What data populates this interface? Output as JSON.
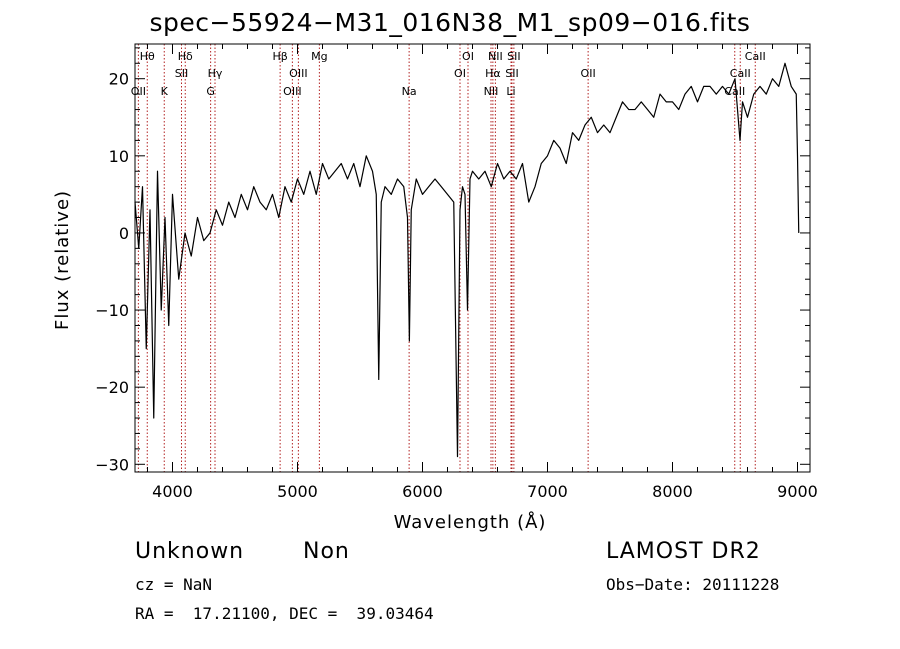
{
  "page": {
    "title": "spec−55924−M31_016N38_M1_sp09−016.fits",
    "object_class": "Unknown",
    "object_subclass": "Non",
    "survey": "LAMOST DR2",
    "cz_line": "cz = NaN",
    "obs_date_line": "Obs−Date: 20111228",
    "radec_line": "RA =  17.21100, DEC =  39.03464"
  },
  "chart_data": {
    "type": "line",
    "xlabel": "Wavelength (Å)",
    "ylabel": "Flux (relative)",
    "xlim": [
      3700,
      9100
    ],
    "ylim": [
      -31,
      24.5
    ],
    "xticks": [
      4000,
      5000,
      6000,
      7000,
      8000,
      9000
    ],
    "yticks": [
      -30,
      -20,
      -10,
      0,
      10,
      20
    ],
    "grid": false,
    "colors": {
      "spectrum": "#000000",
      "line_markers": "#b22222"
    },
    "lines": [
      {
        "label": "Hθ",
        "wavelength": 3798,
        "row": 0
      },
      {
        "label": "OII",
        "wavelength": 3727,
        "row": 2
      },
      {
        "label": "K",
        "wavelength": 3934,
        "row": 2
      },
      {
        "label": "Hδ",
        "wavelength": 4102,
        "row": 0
      },
      {
        "label": "SII",
        "wavelength": 4072,
        "row": 1
      },
      {
        "label": "Hγ",
        "wavelength": 4340,
        "row": 1
      },
      {
        "label": "G",
        "wavelength": 4305,
        "row": 2
      },
      {
        "label": "Hβ",
        "wavelength": 4861,
        "row": 0
      },
      {
        "label": "OIII",
        "wavelength": 5007,
        "row": 1
      },
      {
        "label": "OIII",
        "wavelength": 4959,
        "row": 2
      },
      {
        "label": "Mg",
        "wavelength": 5175,
        "row": 0
      },
      {
        "label": "Na",
        "wavelength": 5893,
        "row": 2
      },
      {
        "label": "OI",
        "wavelength": 6364,
        "row": 0
      },
      {
        "label": "OI",
        "wavelength": 6300,
        "row": 1
      },
      {
        "label": "NII",
        "wavelength": 6583,
        "row": 0
      },
      {
        "label": "Hα",
        "wavelength": 6563,
        "row": 1
      },
      {
        "label": "NII",
        "wavelength": 6548,
        "row": 2
      },
      {
        "label": "SII",
        "wavelength": 6731,
        "row": 0
      },
      {
        "label": "SII",
        "wavelength": 6716,
        "row": 1
      },
      {
        "label": "Li",
        "wavelength": 6708,
        "row": 2
      },
      {
        "label": "OII",
        "wavelength": 7325,
        "row": 1
      },
      {
        "label": "CaII",
        "wavelength": 8662,
        "row": 0
      },
      {
        "label": "CaII",
        "wavelength": 8542,
        "row": 1
      },
      {
        "label": "CaII",
        "wavelength": 8498,
        "row": 2
      }
    ],
    "series": [
      {
        "wavelength": [
          3700,
          3730,
          3760,
          3790,
          3820,
          3850,
          3880,
          3910,
          3940,
          3970,
          4000,
          4050,
          4100,
          4150,
          4200,
          4250,
          4300,
          4350,
          4400,
          4450,
          4500,
          4550,
          4600,
          4650,
          4700,
          4750,
          4800,
          4850,
          4900,
          4950,
          5000,
          5050,
          5100,
          5150,
          5200,
          5250,
          5300,
          5350,
          5400,
          5450,
          5500,
          5550,
          5600,
          5630,
          5650,
          5670,
          5700,
          5750,
          5800,
          5850,
          5880,
          5895,
          5910,
          5950,
          6000,
          6050,
          6100,
          6150,
          6200,
          6250,
          6280,
          6300,
          6320,
          6340,
          6360,
          6380,
          6400,
          6450,
          6500,
          6550,
          6600,
          6650,
          6700,
          6750,
          6800,
          6850,
          6900,
          6950,
          7000,
          7050,
          7100,
          7150,
          7200,
          7250,
          7300,
          7350,
          7400,
          7450,
          7500,
          7550,
          7600,
          7650,
          7700,
          7750,
          7800,
          7850,
          7900,
          7950,
          8000,
          8050,
          8100,
          8150,
          8200,
          8250,
          8300,
          8350,
          8400,
          8450,
          8500,
          8520,
          8540,
          8560,
          8600,
          8650,
          8700,
          8750,
          8800,
          8850,
          8900,
          8950,
          8990,
          9000,
          9010
        ],
        "flux": [
          4,
          -2,
          6,
          -15,
          3,
          -24,
          8,
          -10,
          2,
          -12,
          5,
          -6,
          0,
          -3,
          2,
          -1,
          0,
          3,
          1,
          4,
          2,
          5,
          3,
          6,
          4,
          3,
          5,
          2,
          6,
          4,
          7,
          5,
          8,
          5,
          9,
          7,
          8,
          9,
          7,
          9,
          6,
          10,
          8,
          5,
          -19,
          4,
          6,
          5,
          7,
          6,
          2,
          -14,
          3,
          7,
          5,
          6,
          7,
          6,
          5,
          4,
          -29,
          3,
          6,
          5,
          -10,
          7,
          8,
          7,
          8,
          6,
          9,
          7,
          8,
          7,
          9,
          4,
          6,
          9,
          10,
          12,
          11,
          9,
          13,
          12,
          14,
          15,
          13,
          14,
          13,
          15,
          17,
          16,
          16,
          17,
          16,
          15,
          18,
          17,
          17,
          16,
          18,
          19,
          17,
          19,
          19,
          18,
          19,
          18,
          20,
          16,
          12,
          17,
          15,
          18,
          19,
          18,
          20,
          19,
          22,
          19,
          18,
          10,
          0
        ]
      }
    ]
  }
}
